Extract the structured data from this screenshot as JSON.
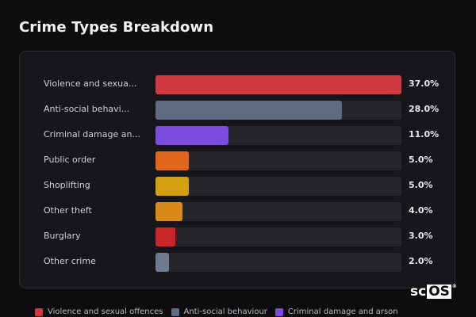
{
  "header": {
    "title": "Crime Types Breakdown"
  },
  "chart_data": {
    "type": "bar",
    "orientation": "horizontal",
    "title": "Crime Types Breakdown",
    "categories": [
      "Violence and sexua...",
      "Anti-social behavi...",
      "Criminal damage an...",
      "Public order",
      "Shoplifting",
      "Other theft",
      "Burglary",
      "Other crime"
    ],
    "values": [
      37.0,
      28.0,
      11.0,
      5.0,
      5.0,
      4.0,
      3.0,
      2.0
    ],
    "value_labels": [
      "37.0%",
      "28.0%",
      "11.0%",
      "5.0%",
      "5.0%",
      "4.0%",
      "3.0%",
      "2.0%"
    ],
    "xlim": [
      0,
      37
    ],
    "unit": "%",
    "colors": [
      "#d0393f",
      "#5f6b7f",
      "#7c4ddd",
      "#e0661c",
      "#d5a00f",
      "#d9881a",
      "#c7272b",
      "#6e7c90"
    ],
    "legend": {
      "placement": "bottom",
      "entries": [
        {
          "label": "Violence and sexual offences",
          "color": "#d0393f"
        },
        {
          "label": "Anti-social behaviour",
          "color": "#5f6b7f"
        },
        {
          "label": "Criminal damage and arson",
          "color": "#7c4ddd"
        }
      ]
    },
    "grid": false
  },
  "branding": {
    "logo_text_plain": "sc",
    "logo_text_boxed": "OS",
    "logo_mark": "®"
  }
}
